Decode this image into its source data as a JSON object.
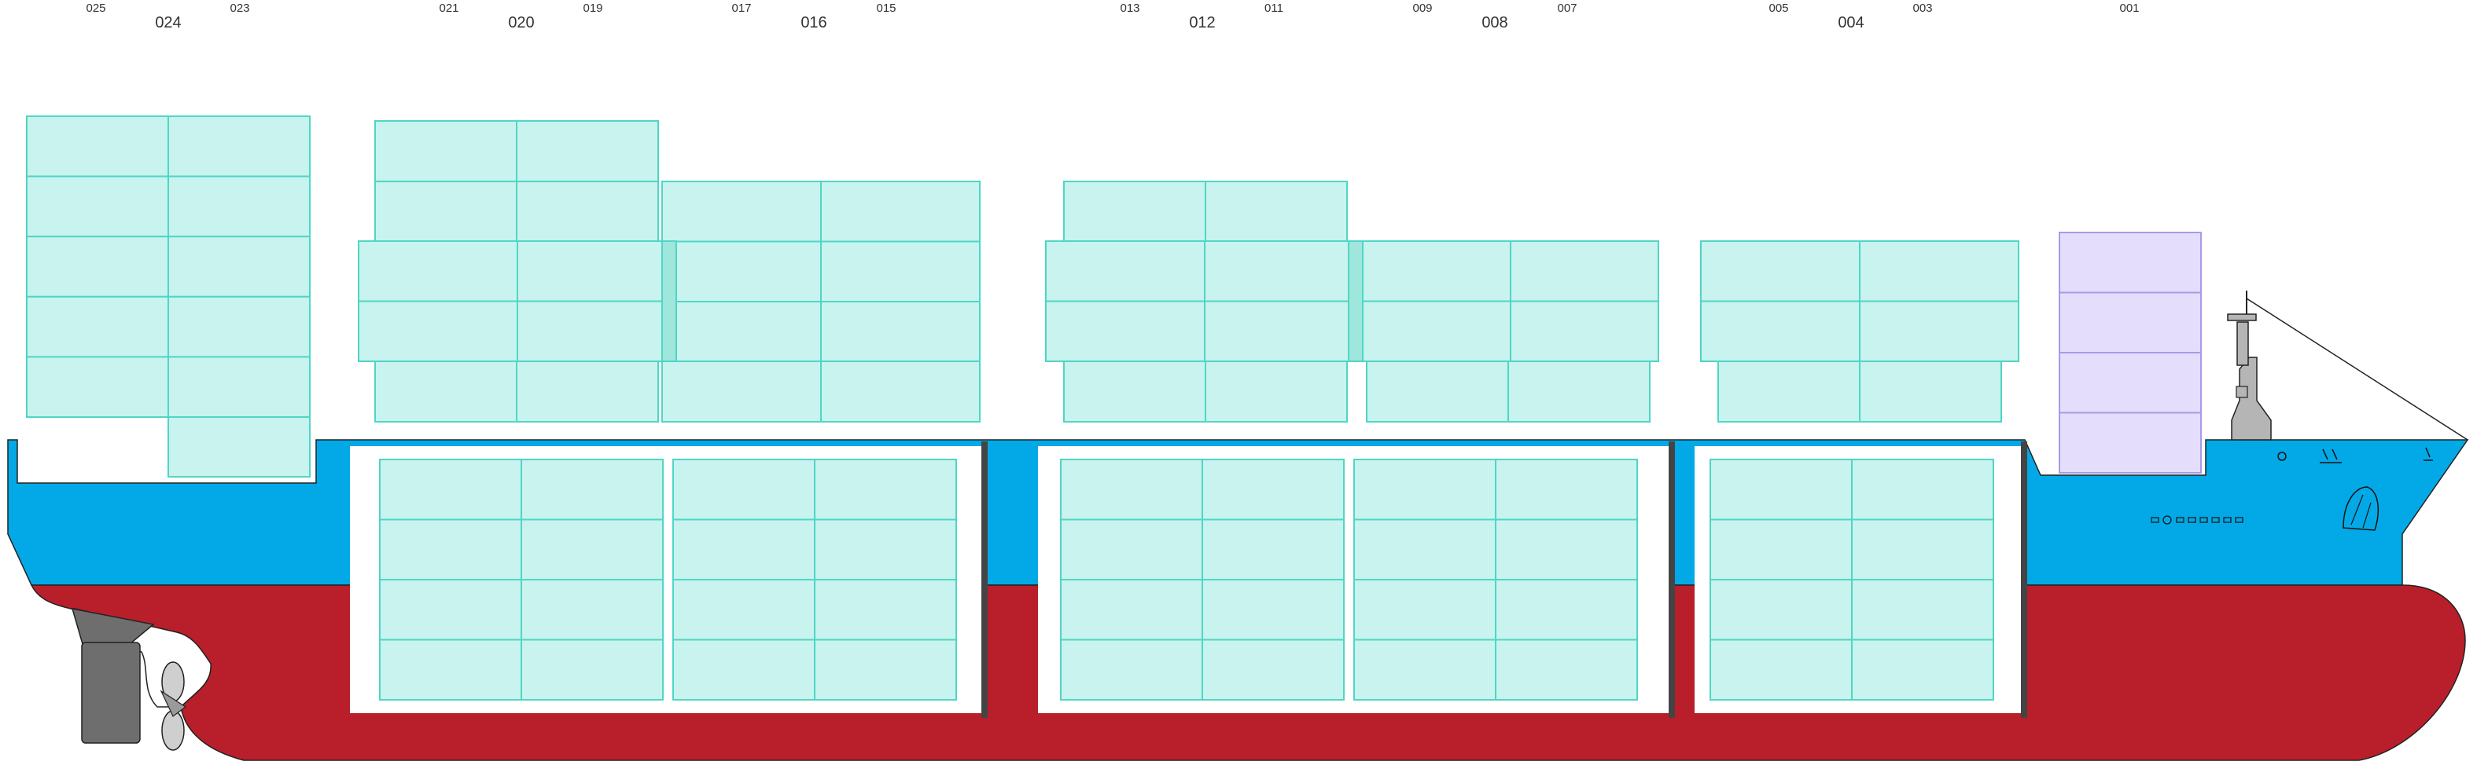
{
  "bays": {
    "labels": [
      {
        "id": "024",
        "main": "024",
        "left": "025",
        "right": "023"
      },
      {
        "id": "020",
        "main": "020",
        "left": "021",
        "right": "019"
      },
      {
        "id": "016",
        "main": "016",
        "left": "017",
        "right": "015"
      },
      {
        "id": "012",
        "main": "012",
        "left": "013",
        "right": "011"
      },
      {
        "id": "008",
        "main": "008",
        "left": "009",
        "right": "007"
      },
      {
        "id": "004",
        "main": "004",
        "left": "005",
        "right": "003"
      },
      {
        "id": "001",
        "main": "",
        "left": "",
        "right": "",
        "single": "001"
      }
    ]
  },
  "colors": {
    "hull_blue": "#03a9e6",
    "hull_red": "#b91f2b",
    "container_fill": "#c8f3ee",
    "container_stroke": "#4fd6c4",
    "reefer_fill": "#e4defc",
    "reefer_stroke": "#a99ae8",
    "hatch_bar": "#444444",
    "superstructure": "#b5b5b5"
  },
  "icons": [
    "propeller-icon",
    "rudder-icon",
    "mast-icon",
    "anchor-icon",
    "lifebuoy-icon"
  ]
}
